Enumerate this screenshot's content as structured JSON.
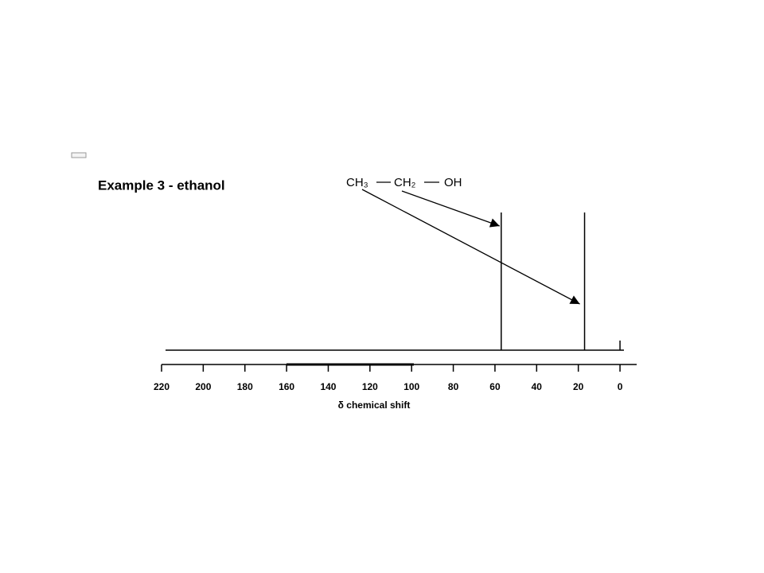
{
  "chart_data": {
    "type": "spectrum",
    "title": "Example 3 - ethanol",
    "x_label": "δ  chemical shift",
    "molecule": [
      "CH₃",
      "CH₂",
      "OH"
    ],
    "x": [
      57,
      17,
      0
    ],
    "values": [
      1,
      1,
      0.07
    ],
    "color": "#000000",
    "xlim": [
      220,
      -8
    ],
    "ylim": [
      0,
      1
    ],
    "xticks": [
      220,
      200,
      180,
      160,
      140,
      120,
      100,
      80,
      60,
      40,
      20,
      0
    ]
  }
}
